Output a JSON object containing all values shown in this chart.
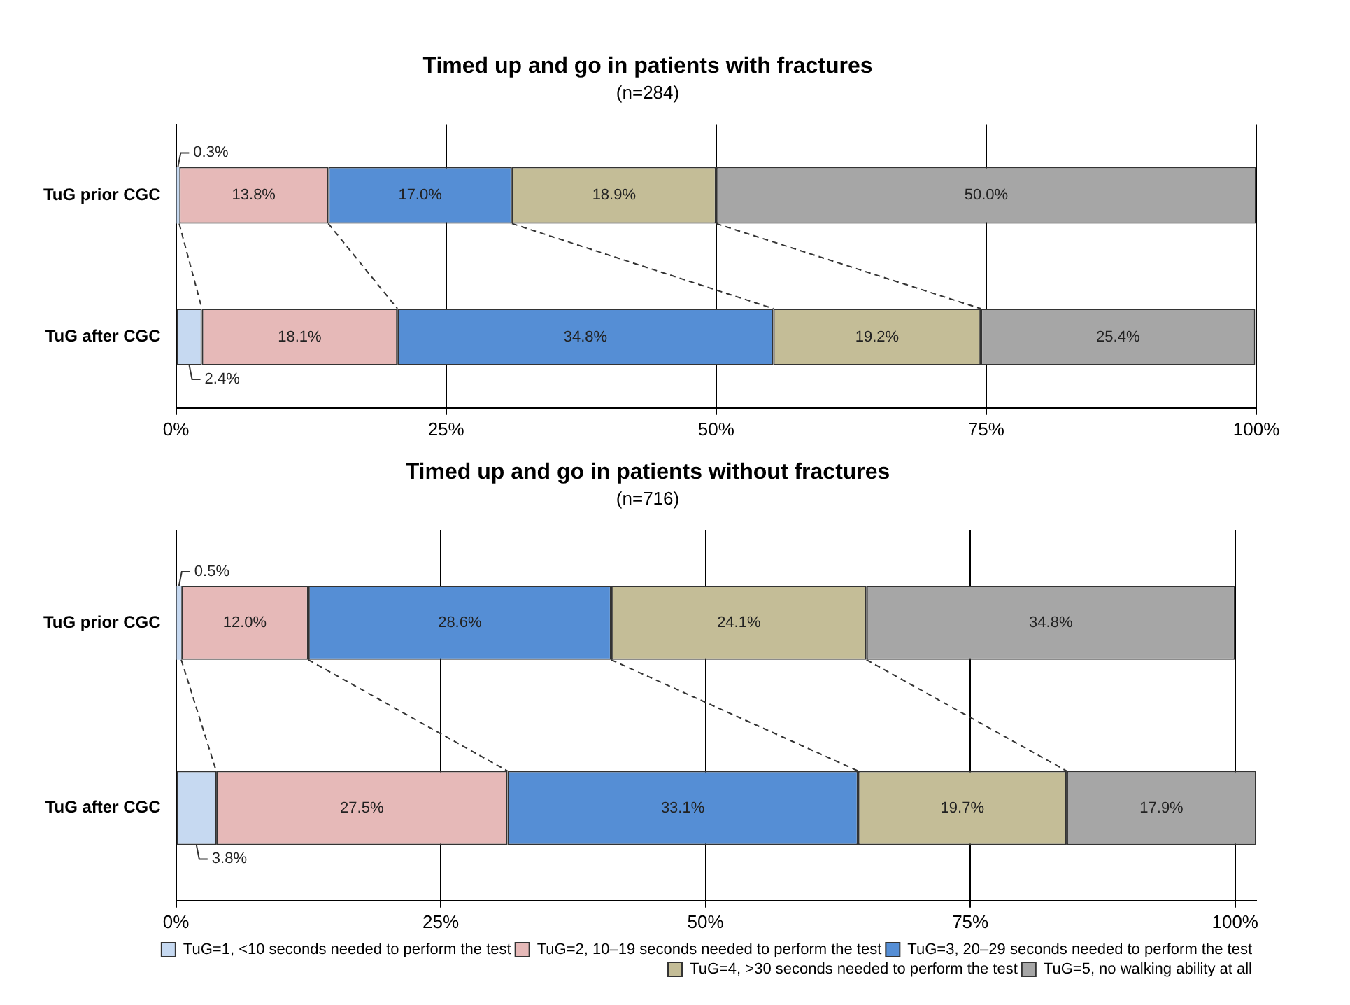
{
  "chart_data": [
    {
      "type": "bar",
      "orientation": "horizontal",
      "stacked": true,
      "title": "Timed up and go in patients with fractures",
      "subtitle": "(n=284)",
      "categories": [
        "TuG prior CGC",
        "TuG after CGC"
      ],
      "series": [
        {
          "color": "#c6d9f1",
          "values": [
            0.3,
            2.4
          ],
          "value_labels": [
            "0.3%",
            "2.4%"
          ]
        },
        {
          "color": "#e6b9b8",
          "values": [
            13.8,
            18.1
          ],
          "value_labels": [
            "13.8%",
            "18.1%"
          ]
        },
        {
          "color": "#558ed5",
          "values": [
            17.0,
            34.8
          ],
          "value_labels": [
            "17.0%",
            "34.8%"
          ]
        },
        {
          "color": "#c4bd97",
          "values": [
            18.9,
            19.2
          ],
          "value_labels": [
            "18.9%",
            "19.2%"
          ]
        },
        {
          "color": "#a6a6a6",
          "values": [
            50.0,
            25.4
          ],
          "value_labels": [
            "50.0%",
            "25.4%"
          ]
        }
      ],
      "xlim": [
        0,
        100
      ],
      "xticks": [
        {
          "value": 0,
          "label": "0%"
        },
        {
          "value": 25,
          "label": "25%"
        },
        {
          "value": 50,
          "label": "50%"
        },
        {
          "value": 75,
          "label": "75%"
        },
        {
          "value": 100,
          "label": "100%"
        }
      ],
      "grid": "x",
      "legend": false
    },
    {
      "type": "bar",
      "orientation": "horizontal",
      "stacked": true,
      "title": "Timed up and go in patients without fractures",
      "subtitle": "(n=716)",
      "categories": [
        "TuG prior CGC",
        "TuG after CGC"
      ],
      "series": [
        {
          "name": "TuG=1, <10 seconds needed to perform the test",
          "color": "#c6d9f1",
          "values": [
            0.5,
            3.8
          ],
          "value_labels": [
            "0.5%",
            "3.8%"
          ]
        },
        {
          "name": "TuG=2, 10–19 seconds needed to perform the test",
          "color": "#e6b9b8",
          "values": [
            12.0,
            27.5
          ],
          "value_labels": [
            "12.0%",
            "27.5%"
          ]
        },
        {
          "name": "TuG=3, 20–29 seconds needed to perform the test",
          "color": "#558ed5",
          "values": [
            28.6,
            33.1
          ],
          "value_labels": [
            "28.6%",
            "33.1%"
          ]
        },
        {
          "name": "TuG=4, >30 seconds needed to perform the test",
          "color": "#c4bd97",
          "values": [
            24.1,
            19.7
          ],
          "value_labels": [
            "24.1%",
            "19.7%"
          ]
        },
        {
          "name": "TuG=5, no walking ability at all",
          "color": "#a6a6a6",
          "values": [
            34.8,
            17.9
          ],
          "value_labels": [
            "34.8%",
            "17.9%"
          ]
        }
      ],
      "xlim": [
        0,
        102
      ],
      "xticks": [
        {
          "value": 0,
          "label": "0%"
        },
        {
          "value": 25,
          "label": "25%"
        },
        {
          "value": 50,
          "label": "50%"
        },
        {
          "value": 75,
          "label": "75%"
        },
        {
          "value": 100,
          "label": "100%"
        }
      ],
      "grid": "x",
      "legend": "bottom right"
    }
  ]
}
